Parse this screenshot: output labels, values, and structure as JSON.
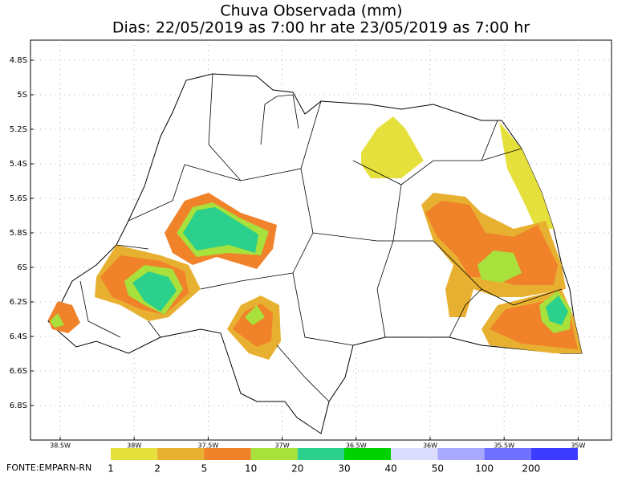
{
  "header": {
    "title": "Chuva Observada (mm)",
    "subtitle": "Dias: 22/05/2019 as 7:00 hr ate 23/05/2019 as 7:00 hr"
  },
  "map": {
    "lat_ticks": [
      "4.8S",
      "5S",
      "5.2S",
      "5.4S",
      "5.6S",
      "5.8S",
      "6S",
      "6.2S",
      "6.4S",
      "6.6S",
      "6.8S"
    ],
    "lon_ticks": [
      "38.5W",
      "38W",
      "37.5W",
      "37W",
      "36.5W",
      "36W",
      "35.5W",
      "35W"
    ]
  },
  "legend": {
    "levels": [
      1,
      2,
      5,
      10,
      20,
      30,
      40,
      50,
      100,
      200
    ],
    "colors": [
      "#e6e03c",
      "#e8b030",
      "#f0822a",
      "#a8e03c",
      "#2ad08c",
      "#00d200",
      "#dcdcff",
      "#a8a8ff",
      "#7070ff",
      "#3c3cff"
    ]
  },
  "source": "FONTE:EMPARN-RN"
}
